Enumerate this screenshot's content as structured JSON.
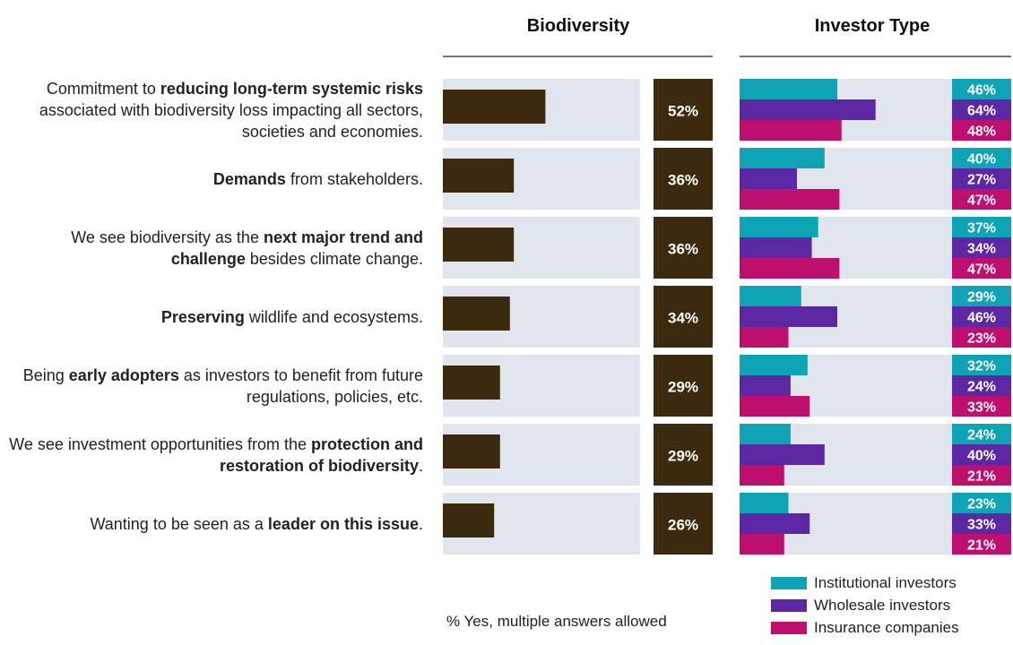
{
  "colors": {
    "biodiversity_bar": "#3b2a0e",
    "track": "#e1e6ee",
    "institutional": "#0fa4b5",
    "wholesale": "#5c27a3",
    "insurance": "#be0f6e",
    "label_text": "#ffffff"
  },
  "chart_data": {
    "type": "bar",
    "orientation": "horizontal",
    "headers": [
      "Biodiversity",
      "Investor Type"
    ],
    "categories": [
      {
        "plain_before": "Commitment to ",
        "bold": "reducing long-term systemic risks",
        "plain_after": " associated with biodiversity loss impacting all sectors, societies and economies."
      },
      {
        "plain_before": "",
        "bold": "Demands",
        "plain_after": " from stakeholders."
      },
      {
        "plain_before": "We see biodiversity as the ",
        "bold": "next major trend and challenge",
        "plain_after": " besides climate change."
      },
      {
        "plain_before": "",
        "bold": "Preserving",
        "plain_after": " wildlife and ecosystems."
      },
      {
        "plain_before": "Being ",
        "bold": "early adopters",
        "plain_after": " as investors to benefit from future regulations, policies, etc."
      },
      {
        "plain_before": "We see investment opportunities from the ",
        "bold": "protection and restoration of biodiversity",
        "plain_after": "."
      },
      {
        "plain_before": "Wanting to be seen as a ",
        "bold": "leader on this issue",
        "plain_after": "."
      }
    ],
    "biodiversity": {
      "values": [
        52,
        36,
        36,
        34,
        29,
        29,
        26
      ],
      "labels": [
        "52%",
        "36%",
        "36%",
        "34%",
        "29%",
        "29%",
        "26%"
      ]
    },
    "series": [
      {
        "name": "Institutional investors",
        "values": [
          46,
          40,
          37,
          29,
          32,
          24,
          23
        ],
        "labels": [
          "46%",
          "40%",
          "37%",
          "29%",
          "32%",
          "24%",
          "23%"
        ]
      },
      {
        "name": "Wholesale investors",
        "values": [
          64,
          27,
          34,
          46,
          24,
          40,
          33
        ],
        "labels": [
          "64%",
          "27%",
          "34%",
          "46%",
          "24%",
          "40%",
          "33%"
        ]
      },
      {
        "name": "Insurance companies",
        "values": [
          48,
          47,
          47,
          23,
          33,
          21,
          21
        ],
        "labels": [
          "48%",
          "47%",
          "47%",
          "23%",
          "33%",
          "21%",
          "21%"
        ]
      }
    ],
    "xlim": [
      0,
      100
    ],
    "note": "% Yes, multiple answers allowed",
    "legend_position": "bottom-right"
  }
}
